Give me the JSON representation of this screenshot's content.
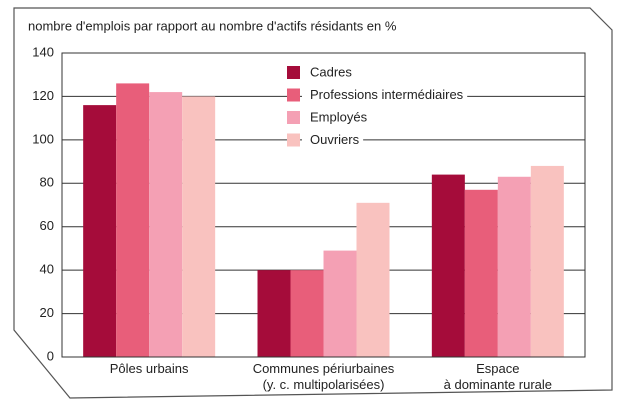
{
  "chart_data": {
    "type": "bar",
    "title": "nombre d'emplois par rapport au nombre d'actifs résidants en %",
    "categories": [
      "Pôles urbains",
      "Communes périurbaines\n(y. c. multipolarisées)",
      "Espace\nà dominante rurale"
    ],
    "series": [
      {
        "name": "Cadres",
        "color": "#a50c3a",
        "values": [
          116,
          40,
          84
        ]
      },
      {
        "name": "Professions intermédiaires",
        "color": "#e85e7a",
        "values": [
          126,
          40,
          77
        ]
      },
      {
        "name": "Employés",
        "color": "#f4a0b4",
        "values": [
          122,
          49,
          83
        ]
      },
      {
        "name": "Ouvriers",
        "color": "#f9c2bf",
        "values": [
          120,
          71,
          88
        ]
      }
    ],
    "ylim": [
      0,
      140
    ],
    "yticks": [
      0,
      20,
      40,
      60,
      80,
      100,
      120,
      140
    ],
    "grid": true
  }
}
